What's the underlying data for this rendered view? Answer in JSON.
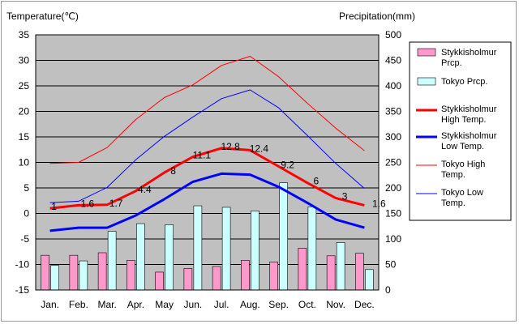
{
  "chart_data": {
    "type": "bar+line",
    "left_axis_title": "Temperature(℃)",
    "right_axis_title": "Precipitation(mm)",
    "categories": [
      "Jan.",
      "Feb.",
      "Mar.",
      "Apr.",
      "May",
      "Jun.",
      "Jul.",
      "Aug.",
      "Sep.",
      "Oct.",
      "Nov.",
      "Dec."
    ],
    "temp_axis": {
      "min": -15,
      "max": 35,
      "step": 5
    },
    "precip_axis": {
      "min": 0,
      "max": 500,
      "step": 50
    },
    "grid": true,
    "legend_position": "right",
    "bar_series": [
      {
        "name": "Stykkisholmur Prcp.",
        "color": "#ff99cc",
        "values": [
          68,
          68,
          73,
          58,
          35,
          42,
          46,
          58,
          55,
          82,
          67,
          72
        ]
      },
      {
        "name": "Tokyo Prcp.",
        "color": "#ccffff",
        "values": [
          48,
          57,
          115,
          130,
          128,
          165,
          162,
          155,
          210,
          163,
          93,
          40
        ]
      }
    ],
    "line_series": [
      {
        "name": "Stykkisholmur High Temp.",
        "color": "#ff0000",
        "width": "thick",
        "values": [
          1,
          1.6,
          1.7,
          4.4,
          8,
          11.1,
          12.8,
          12.4,
          9.2,
          6,
          3,
          1.6
        ],
        "labels": [
          "1",
          "1.6",
          "1.7",
          "4.4",
          "8",
          "11.1",
          "12.8",
          "12.4",
          "9.2",
          "6",
          "3",
          "1.6"
        ]
      },
      {
        "name": "Stykkisholmur Low Temp.",
        "color": "#0000ff",
        "width": "thick",
        "values": [
          -3.4,
          -2.8,
          -2.8,
          -0.4,
          2.8,
          6.2,
          7.8,
          7.6,
          5.2,
          2.1,
          -1.2,
          -2.8
        ]
      },
      {
        "name": "Tokyo High Temp.",
        "color": "#ff0000",
        "width": "thin",
        "values": [
          9.8,
          10,
          12.9,
          18.4,
          22.7,
          25.2,
          29,
          30.8,
          26.8,
          21.6,
          16.7,
          12.3
        ]
      },
      {
        "name": "Tokyo Low Temp.",
        "color": "#0000ff",
        "width": "thin",
        "values": [
          2.1,
          2.4,
          5.1,
          10.5,
          15.1,
          18.9,
          22.5,
          24.2,
          20.7,
          15.3,
          9.8,
          4.9
        ]
      }
    ],
    "legend": [
      {
        "kind": "bar",
        "color": "#ff99cc",
        "lines": [
          "Stykkisholmur",
          "Prcp."
        ]
      },
      {
        "kind": "bar",
        "color": "#ccffff",
        "lines": [
          "Tokyo Prcp."
        ]
      },
      {
        "kind": "line",
        "color": "#ff0000",
        "thick": true,
        "lines": [
          "Stykkisholmur",
          "High Temp."
        ]
      },
      {
        "kind": "line",
        "color": "#0000ff",
        "thick": true,
        "lines": [
          "Stykkisholmur",
          "Low Temp."
        ]
      },
      {
        "kind": "line",
        "color": "#ff0000",
        "thick": false,
        "lines": [
          "Tokyo High",
          "Temp."
        ]
      },
      {
        "kind": "line",
        "color": "#0000ff",
        "thick": false,
        "lines": [
          "Tokyo Low",
          "Temp."
        ]
      }
    ]
  }
}
